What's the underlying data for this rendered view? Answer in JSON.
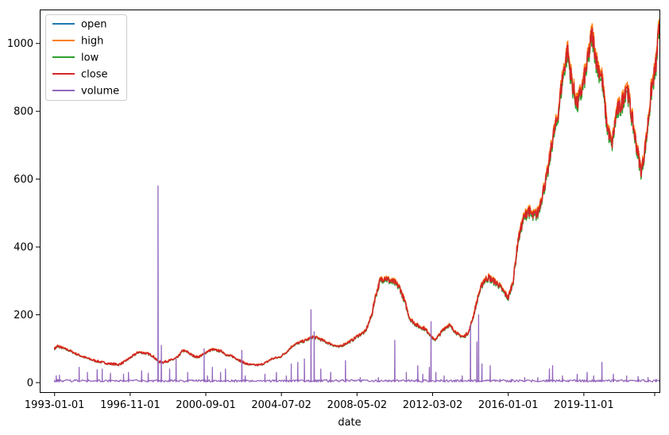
{
  "chart_data": {
    "type": "line",
    "xlabel": "date",
    "ylabel": "",
    "x_range": [
      "1992-04-01",
      "2023-09-01"
    ],
    "ylim": [
      -28,
      1100
    ],
    "grid": false,
    "legend_position": "top-left",
    "x_ticks": [
      "1993-01-01",
      "1996-11-01",
      "2000-09-01",
      "2004-07-02",
      "2008-05-02",
      "2012-03-02",
      "2016-01-01",
      "2019-11-01"
    ],
    "y_ticks": [
      0,
      200,
      400,
      600,
      800,
      1000
    ],
    "series": [
      {
        "name": "open",
        "color": "#1f77b4"
      },
      {
        "name": "high",
        "color": "#ff7f0e"
      },
      {
        "name": "low",
        "color": "#2ca02c"
      },
      {
        "name": "close",
        "color": "#d62728"
      },
      {
        "name": "volume",
        "color": "#9467bd"
      }
    ],
    "price_points": [
      [
        "1993-01-01",
        100
      ],
      [
        "1993-03-01",
        108
      ],
      [
        "1993-06-01",
        102
      ],
      [
        "1993-10-01",
        95
      ],
      [
        "1994-02-01",
        85
      ],
      [
        "1994-06-01",
        77
      ],
      [
        "1994-10-01",
        70
      ],
      [
        "1995-02-01",
        64
      ],
      [
        "1995-06-01",
        60
      ],
      [
        "1995-10-01",
        56
      ],
      [
        "1996-01-01",
        55
      ],
      [
        "1996-04-01",
        53
      ],
      [
        "1996-07-01",
        60
      ],
      [
        "1996-10-01",
        70
      ],
      [
        "1997-01-01",
        80
      ],
      [
        "1997-04-01",
        90
      ],
      [
        "1997-07-01",
        88
      ],
      [
        "1997-10-01",
        85
      ],
      [
        "1998-01-01",
        78
      ],
      [
        "1998-04-01",
        62
      ],
      [
        "1998-07-01",
        60
      ],
      [
        "1998-10-01",
        64
      ],
      [
        "1999-01-01",
        68
      ],
      [
        "1999-04-01",
        75
      ],
      [
        "1999-07-01",
        95
      ],
      [
        "1999-10-01",
        90
      ],
      [
        "2000-01-01",
        80
      ],
      [
        "2000-04-01",
        75
      ],
      [
        "2000-07-01",
        82
      ],
      [
        "2000-10-01",
        92
      ],
      [
        "2001-01-01",
        98
      ],
      [
        "2001-04-01",
        95
      ],
      [
        "2001-07-01",
        92
      ],
      [
        "2001-10-01",
        80
      ],
      [
        "2002-01-01",
        78
      ],
      [
        "2002-04-01",
        70
      ],
      [
        "2002-07-01",
        62
      ],
      [
        "2002-10-01",
        55
      ],
      [
        "2003-01-01",
        52
      ],
      [
        "2003-06-01",
        52
      ],
      [
        "2003-10-01",
        60
      ],
      [
        "2004-01-01",
        70
      ],
      [
        "2004-06-01",
        75
      ],
      [
        "2004-10-01",
        90
      ],
      [
        "2005-02-01",
        110
      ],
      [
        "2005-06-01",
        118
      ],
      [
        "2005-10-01",
        125
      ],
      [
        "2006-02-01",
        135
      ],
      [
        "2006-06-01",
        130
      ],
      [
        "2006-10-01",
        120
      ],
      [
        "2007-02-01",
        112
      ],
      [
        "2007-06-01",
        105
      ],
      [
        "2007-10-01",
        115
      ],
      [
        "2008-02-01",
        125
      ],
      [
        "2008-06-01",
        140
      ],
      [
        "2008-10-01",
        150
      ],
      [
        "2009-02-01",
        200
      ],
      [
        "2009-04-01",
        250
      ],
      [
        "2009-07-01",
        300
      ],
      [
        "2009-10-01",
        310
      ],
      [
        "2010-01-01",
        300
      ],
      [
        "2010-04-01",
        295
      ],
      [
        "2010-07-01",
        280
      ],
      [
        "2010-10-01",
        240
      ],
      [
        "2011-01-01",
        190
      ],
      [
        "2011-04-01",
        175
      ],
      [
        "2011-07-01",
        165
      ],
      [
        "2011-10-01",
        160
      ],
      [
        "2012-01-01",
        145
      ],
      [
        "2012-04-01",
        125
      ],
      [
        "2012-07-01",
        140
      ],
      [
        "2012-10-01",
        160
      ],
      [
        "2013-01-01",
        170
      ],
      [
        "2013-04-01",
        155
      ],
      [
        "2013-07-01",
        140
      ],
      [
        "2013-10-01",
        135
      ],
      [
        "2014-01-01",
        150
      ],
      [
        "2014-04-01",
        200
      ],
      [
        "2014-07-01",
        260
      ],
      [
        "2014-10-01",
        300
      ],
      [
        "2015-01-01",
        310
      ],
      [
        "2015-04-01",
        300
      ],
      [
        "2015-07-01",
        290
      ],
      [
        "2015-10-01",
        270
      ],
      [
        "2016-01-01",
        250
      ],
      [
        "2016-04-01",
        300
      ],
      [
        "2016-07-01",
        420
      ],
      [
        "2016-10-01",
        480
      ],
      [
        "2017-01-01",
        510
      ],
      [
        "2017-04-01",
        490
      ],
      [
        "2017-07-01",
        500
      ],
      [
        "2017-10-01",
        560
      ],
      [
        "2018-01-01",
        620
      ],
      [
        "2018-04-01",
        720
      ],
      [
        "2018-07-01",
        780
      ],
      [
        "2018-10-01",
        900
      ],
      [
        "2019-01-01",
        980
      ],
      [
        "2019-04-01",
        880
      ],
      [
        "2019-07-01",
        820
      ],
      [
        "2019-10-01",
        870
      ],
      [
        "2020-01-01",
        940
      ],
      [
        "2020-04-01",
        1030
      ],
      [
        "2020-07-01",
        940
      ],
      [
        "2020-10-01",
        900
      ],
      [
        "2021-01-01",
        760
      ],
      [
        "2021-04-01",
        700
      ],
      [
        "2021-07-01",
        800
      ],
      [
        "2021-10-01",
        820
      ],
      [
        "2022-01-01",
        880
      ],
      [
        "2022-04-01",
        790
      ],
      [
        "2022-07-01",
        700
      ],
      [
        "2022-10-01",
        620
      ],
      [
        "2023-01-01",
        720
      ],
      [
        "2023-04-01",
        860
      ],
      [
        "2023-07-01",
        940
      ],
      [
        "2023-09-01",
        1060
      ]
    ],
    "volume_points": [
      [
        "1993-01-01",
        3
      ],
      [
        "1993-02-01",
        20
      ],
      [
        "1993-03-01",
        8
      ],
      [
        "1993-04-01",
        22
      ],
      [
        "1993-06-01",
        5
      ],
      [
        "1994-04-01",
        45
      ],
      [
        "1994-09-01",
        30
      ],
      [
        "1995-03-01",
        38
      ],
      [
        "1995-06-01",
        40
      ],
      [
        "1995-11-01",
        28
      ],
      [
        "1996-07-01",
        25
      ],
      [
        "1996-10-01",
        30
      ],
      [
        "1997-06-01",
        35
      ],
      [
        "1997-10-01",
        28
      ],
      [
        "1998-04-01",
        580
      ],
      [
        "1998-06-01",
        110
      ],
      [
        "1998-11-01",
        40
      ],
      [
        "1999-03-01",
        70
      ],
      [
        "1999-10-01",
        30
      ],
      [
        "2000-08-01",
        100
      ],
      [
        "2000-10-01",
        20
      ],
      [
        "2001-01-01",
        45
      ],
      [
        "2001-06-01",
        30
      ],
      [
        "2001-09-01",
        40
      ],
      [
        "2002-07-01",
        95
      ],
      [
        "2002-09-01",
        20
      ],
      [
        "2003-09-01",
        25
      ],
      [
        "2004-04-01",
        30
      ],
      [
        "2004-10-01",
        20
      ],
      [
        "2005-01-01",
        55
      ],
      [
        "2005-05-01",
        60
      ],
      [
        "2005-09-01",
        70
      ],
      [
        "2006-01-01",
        215
      ],
      [
        "2006-03-01",
        150
      ],
      [
        "2006-07-01",
        40
      ],
      [
        "2007-01-01",
        30
      ],
      [
        "2007-10-01",
        65
      ],
      [
        "2008-07-01",
        15
      ],
      [
        "2009-06-01",
        15
      ],
      [
        "2010-04-01",
        125
      ],
      [
        "2010-11-01",
        30
      ],
      [
        "2011-06-01",
        50
      ],
      [
        "2011-09-01",
        25
      ],
      [
        "2012-01-01",
        45
      ],
      [
        "2012-02-01",
        180
      ],
      [
        "2012-05-01",
        30
      ],
      [
        "2012-10-01",
        20
      ],
      [
        "2013-09-01",
        20
      ],
      [
        "2014-02-01",
        170
      ],
      [
        "2014-06-01",
        120
      ],
      [
        "2014-07-01",
        200
      ],
      [
        "2014-09-01",
        55
      ],
      [
        "2015-02-01",
        50
      ],
      [
        "2015-08-01",
        10
      ],
      [
        "2016-03-01",
        10
      ],
      [
        "2016-11-01",
        15
      ],
      [
        "2017-07-01",
        15
      ],
      [
        "2018-02-01",
        40
      ],
      [
        "2018-04-01",
        50
      ],
      [
        "2018-10-01",
        20
      ],
      [
        "2019-07-01",
        25
      ],
      [
        "2020-01-01",
        30
      ],
      [
        "2020-05-01",
        20
      ],
      [
        "2020-10-01",
        60
      ],
      [
        "2021-05-01",
        25
      ],
      [
        "2022-01-01",
        20
      ],
      [
        "2022-08-01",
        18
      ],
      [
        "2023-02-01",
        15
      ],
      [
        "2023-07-01",
        10
      ]
    ]
  }
}
